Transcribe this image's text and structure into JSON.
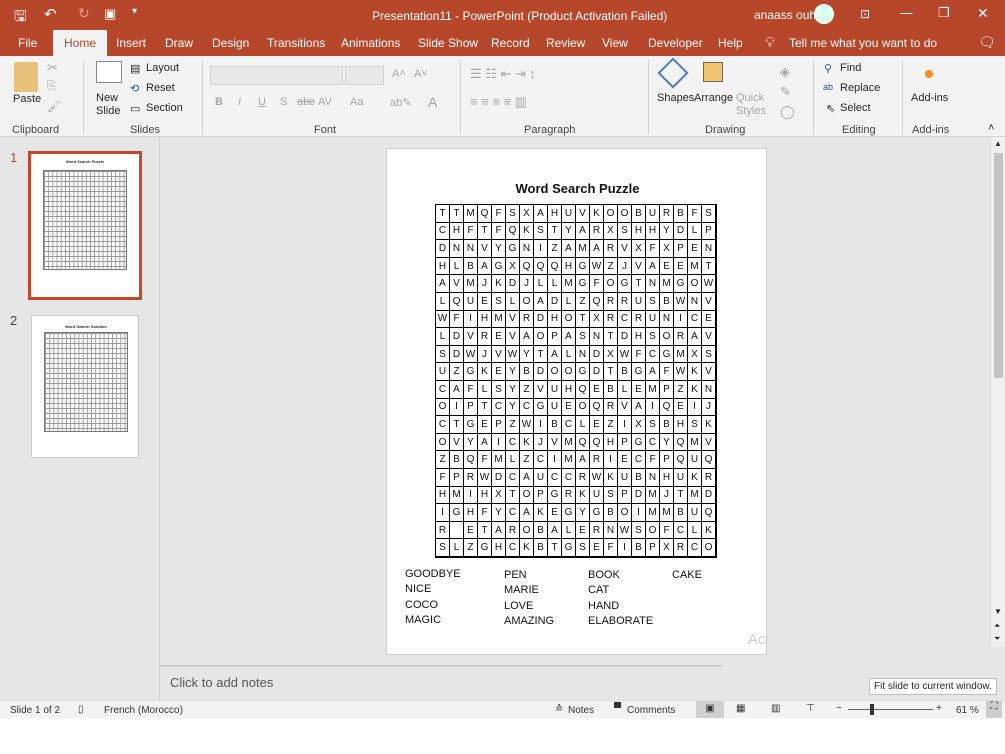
{
  "colors": {
    "accent": "#b7472a",
    "ribbon": "#f3f3f3",
    "workspace": "#e6e6e6"
  },
  "titlebar": {
    "title": "Presentation11  -  PowerPoint (Product Activation Failed)",
    "user": "anaass ouh"
  },
  "tabs": [
    "File",
    "Home",
    "Insert",
    "Draw",
    "Design",
    "Transitions",
    "Animations",
    "Slide Show",
    "Record",
    "Review",
    "View",
    "Developer",
    "Help"
  ],
  "tell_me": "Tell me what you want to do",
  "ribbon": {
    "clipboard": {
      "paste": "Paste",
      "group": "Clipboard"
    },
    "slides": {
      "new_slide": "New Slide",
      "layout": "Layout",
      "reset": "Reset",
      "section": "Section",
      "group": "Slides"
    },
    "font": {
      "group": "Font",
      "bold": "B",
      "italic": "I",
      "underline": "U",
      "strike": "S",
      "abc": "abc",
      "spacing": "AV",
      "case": "Aa",
      "color": "A"
    },
    "paragraph": {
      "group": "Paragraph"
    },
    "drawing": {
      "shapes": "Shapes",
      "arrange": "Arrange",
      "quick_styles": "Quick Styles",
      "group": "Drawing"
    },
    "editing": {
      "find": "Find",
      "replace": "Replace",
      "select": "Select",
      "group": "Editing"
    },
    "addins": {
      "label": "Add-ins",
      "group": "Add-ins"
    }
  },
  "thumbnails": [
    {
      "number": "1",
      "title": "Word Search Puzzle",
      "selected": true
    },
    {
      "number": "2",
      "title": "Word Search Solution",
      "selected": false
    }
  ],
  "slide": {
    "title": "Word Search Puzzle",
    "rows": [
      "TTMQFSXAHUVKOOBURBFS",
      "CHFTFQKSTYARXSHHYDLP",
      "DNNVYGNIZAMARVXFXPEN",
      "HLBAGXQQQHGWZJVAEEMT",
      "AVMJKDJLLMGFOGTNMGOW",
      "LQUESLOADLZQRRUSBWNV",
      "WFIHMVRDHOTXRCRUNICE",
      "LDVREVAOPASNTDHSORAV",
      "SDWJVWYTALNDXWFCGMXS",
      "UZGKEYBDOOGDTBGAFWKV",
      "CAFLSYZVUHQEBLEMPZKN",
      "OIPTCYCGUEOQRVAIQEIJ",
      "CTGEPZWIBCLEZIXSBHSK",
      "OVYAICKJVMQQHPGCYQMV",
      "ZBQFMLZCIMARIECFPQUQ",
      "FPRWDCAUCCRWKUBNHUKR",
      "HMIHXTOPGRKUSPDMJTMD",
      "IGHFYCAKEGYGBOIMMBUQ",
      "R ETAROBALERNWSOFCLK",
      "SLZGHCKBTGSEFIBPXRCO"
    ],
    "words": [
      [
        "GOODBYE",
        "NICE",
        "COCO",
        "MAGIC"
      ],
      [
        "PEN",
        "MARIE",
        "LOVE",
        "AMAZING"
      ],
      [
        "BOOK",
        "CAT",
        "HAND",
        "ELABORATE"
      ],
      [
        "CAKE"
      ]
    ],
    "watermark": "Ac"
  },
  "notes_placeholder": "Click to add notes",
  "tooltip": "Fit slide to current window.",
  "status": {
    "slide": "Slide 1 of 2",
    "language": "French (Morocco)",
    "notes": "Notes",
    "comments": "Comments",
    "zoom": "61 %",
    "zoom_percent": 61
  }
}
